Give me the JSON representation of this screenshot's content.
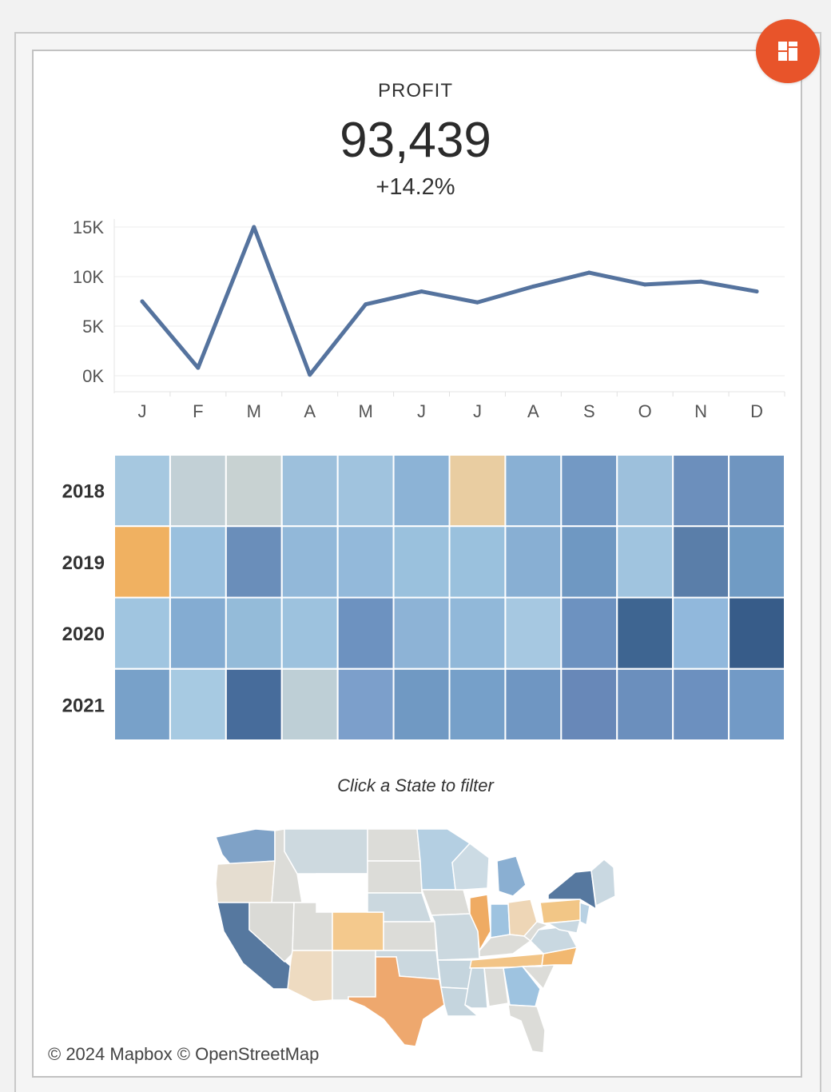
{
  "kpi": {
    "label": "PROFIT",
    "value": "93,439",
    "change": "+14.2%"
  },
  "fab": {
    "icon": "dashboard-layout-icon",
    "color": "#e8542a"
  },
  "chart_data": [
    {
      "type": "line",
      "categories": [
        "J",
        "F",
        "M",
        "A",
        "M",
        "J",
        "J",
        "A",
        "S",
        "O",
        "N",
        "D"
      ],
      "values": [
        7500,
        800,
        15000,
        100,
        7200,
        8500,
        7400,
        9000,
        10400,
        9200,
        9500,
        8500
      ],
      "ylim": [
        0,
        15000
      ],
      "yticks": [
        0,
        5000,
        10000,
        15000
      ],
      "ytick_labels": [
        "0K",
        "5K",
        "10K",
        "15K"
      ],
      "line_color": "#55739e",
      "grid": true
    },
    {
      "type": "heatmap",
      "rows": [
        "2018",
        "2019",
        "2020",
        "2021"
      ],
      "columns": [
        "J",
        "F",
        "M",
        "A",
        "M",
        "J",
        "J",
        "A",
        "S",
        "O",
        "N",
        "D"
      ],
      "colors": [
        [
          "#a6c8e0",
          "#c2d0d6",
          "#c8d2d2",
          "#9dc0dc",
          "#a0c3de",
          "#8cb3d6",
          "#e9cda1",
          "#89b0d4",
          "#7399c4",
          "#9dc0dc",
          "#6c8fbc",
          "#6f95c0"
        ],
        [
          "#f0b161",
          "#9ac0de",
          "#6a8eba",
          "#92b8d9",
          "#93b9da",
          "#9ac1dd",
          "#9ac1dd",
          "#88afd3",
          "#6f98c2",
          "#a0c4df",
          "#5a7ea9",
          "#709bc4"
        ],
        [
          "#a0c5e0",
          "#84acd2",
          "#94bbd9",
          "#9dc2de",
          "#6d92c0",
          "#8db3d6",
          "#91b8d9",
          "#a6c8e1",
          "#6d92c0",
          "#3e6591",
          "#91b8dc",
          "#375c89"
        ],
        [
          "#78a1c9",
          "#a7cae2",
          "#476c9b",
          "#becfd6",
          "#7c9fcb",
          "#7099c3",
          "#76a0c9",
          "#6f96c2",
          "#6888b8",
          "#6b8fbd",
          "#6c90bf",
          "#729ac6"
        ]
      ]
    }
  ],
  "map": {
    "hint": "Click a State to filter",
    "attribution": "© 2024 Mapbox  © OpenStreetMap"
  }
}
